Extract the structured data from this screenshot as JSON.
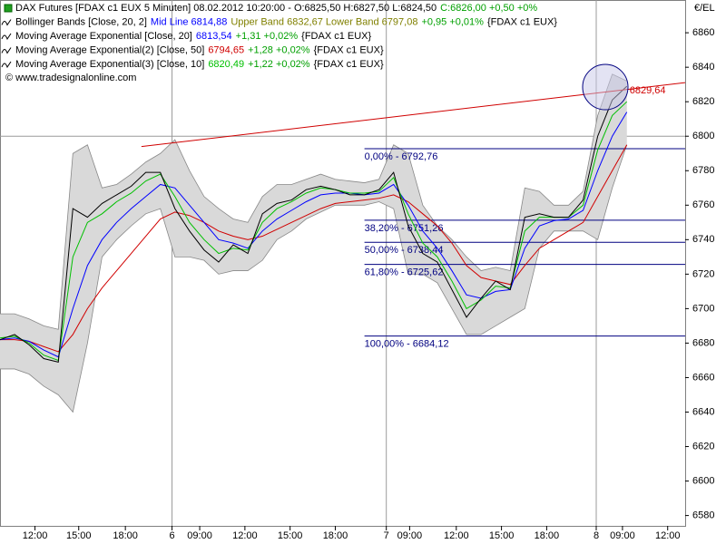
{
  "chart_data": {
    "type": "line",
    "legend_lines": [
      {
        "parts": [
          {
            "text": "DAX Futures [FDAX c1 EUX  5 Minuten] 08.02.2012 10:20:00 - O:6825,50 H:6827,50 L:6824,50",
            "color": "#000000"
          },
          {
            "text": "C:6826,00 +0,50 +0%",
            "color": "#00a000"
          }
        ]
      },
      {
        "parts": [
          {
            "text": "Bollinger Bands [Close, 20, 2]",
            "color": "#000000"
          },
          {
            "text": "Mid Line 6814,88",
            "color": "#0000ff"
          },
          {
            "text": "Upper Band 6832,67 Lower Band 6797,08",
            "color": "#808000"
          },
          {
            "text": "+0,95 +0,01%",
            "color": "#00a000"
          },
          {
            "text": "{FDAX c1 EUX}",
            "color": "#000000"
          }
        ]
      },
      {
        "parts": [
          {
            "text": "Moving Average Exponential [Close, 20]",
            "color": "#000000"
          },
          {
            "text": "6813,54",
            "color": "#0000ff"
          },
          {
            "text": "+1,31 +0,02%",
            "color": "#00a000"
          },
          {
            "text": "{FDAX c1 EUX}",
            "color": "#000000"
          }
        ]
      },
      {
        "parts": [
          {
            "text": "Moving Average Exponential(2) [Close, 50]",
            "color": "#000000"
          },
          {
            "text": "6794,65",
            "color": "#d00000"
          },
          {
            "text": "+1,28 +0,02%",
            "color": "#00a000"
          },
          {
            "text": "{FDAX c1 EUX}",
            "color": "#000000"
          }
        ]
      },
      {
        "parts": [
          {
            "text": "Moving Average Exponential(3) [Close, 10]",
            "color": "#000000"
          },
          {
            "text": "6820,49",
            "color": "#00c000"
          },
          {
            "text": "+1,22 +0,02%",
            "color": "#00a000"
          },
          {
            "text": "{FDAX c1 EUX}",
            "color": "#000000"
          }
        ]
      }
    ],
    "copyright": "© www.tradesignalonline.com",
    "y_axis_label": "€/EL",
    "x": [
      0,
      1,
      2,
      3,
      4,
      5,
      6,
      7,
      8,
      9,
      10,
      11,
      12,
      13,
      14,
      15,
      16,
      17,
      18,
      19,
      20,
      21,
      22,
      23,
      24,
      25,
      26,
      27,
      28,
      29,
      30,
      31,
      32,
      33,
      34,
      35,
      36,
      37,
      38,
      39,
      40,
      41,
      42,
      43
    ],
    "xlim": [
      0,
      47
    ],
    "xticks": [
      {
        "value": 2.4,
        "label": "12:00"
      },
      {
        "value": 5.4,
        "label": "15:00"
      },
      {
        "value": 8.6,
        "label": "18:00"
      },
      {
        "value": 11.8,
        "label": "6"
      },
      {
        "value": 13.7,
        "label": "09:00"
      },
      {
        "value": 16.8,
        "label": "12:00"
      },
      {
        "value": 19.9,
        "label": "15:00"
      },
      {
        "value": 23.0,
        "label": "18:00"
      },
      {
        "value": 26.5,
        "label": "7"
      },
      {
        "value": 28.1,
        "label": "09:00"
      },
      {
        "value": 31.3,
        "label": "12:00"
      },
      {
        "value": 34.4,
        "label": "15:00"
      },
      {
        "value": 37.5,
        "label": "18:00"
      },
      {
        "value": 40.9,
        "label": "8"
      },
      {
        "value": 42.7,
        "label": "09:00"
      },
      {
        "value": 45.8,
        "label": "12:00"
      }
    ],
    "ylim": [
      6574,
      6879
    ],
    "yticks": [
      6580,
      6600,
      6620,
      6640,
      6660,
      6680,
      6700,
      6720,
      6740,
      6760,
      6780,
      6800,
      6820,
      6840,
      6860
    ],
    "reference_lines": [
      6800
    ],
    "bands": {
      "color": "#d9d9d9",
      "upper": [
        6697,
        6697,
        6694,
        6690,
        6688,
        6790,
        6795,
        6770,
        6772,
        6778,
        6785,
        6790,
        6798,
        6780,
        6765,
        6758,
        6752,
        6750,
        6765,
        6772,
        6772,
        6775,
        6778,
        6775,
        6774,
        6773,
        6775,
        6795,
        6790,
        6760,
        6748,
        6740,
        6730,
        6722,
        6724,
        6722,
        6770,
        6768,
        6760,
        6760,
        6768,
        6812,
        6836,
        6832
      ],
      "lower": [
        6665,
        6665,
        6662,
        6655,
        6650,
        6640,
        6680,
        6730,
        6740,
        6748,
        6755,
        6758,
        6730,
        6730,
        6728,
        6720,
        6722,
        6722,
        6728,
        6740,
        6745,
        6752,
        6756,
        6760,
        6760,
        6760,
        6762,
        6758,
        6720,
        6720,
        6715,
        6700,
        6685,
        6685,
        6690,
        6695,
        6700,
        6735,
        6745,
        6745,
        6745,
        6740,
        6770,
        6795
      ]
    },
    "series": [
      {
        "color": "#d00000",
        "values": [
          6682,
          6682,
          6681,
          6678,
          6675,
          6685,
          6700,
          6712,
          6722,
          6732,
          6742,
          6752,
          6756,
          6754,
          6750,
          6745,
          6742,
          6740,
          6742,
          6746,
          6750,
          6754,
          6758,
          6761,
          6762,
          6763,
          6764,
          6766,
          6762,
          6755,
          6748,
          6738,
          6725,
          6718,
          6716,
          6714,
          6725,
          6735,
          6740,
          6745,
          6750,
          6765,
          6780,
          6795
        ]
      },
      {
        "color": "#0000ff",
        "values": [
          6682,
          6683,
          6681,
          6676,
          6672,
          6700,
          6725,
          6740,
          6750,
          6758,
          6765,
          6772,
          6770,
          6760,
          6750,
          6740,
          6738,
          6735,
          6745,
          6752,
          6757,
          6762,
          6766,
          6767,
          6767,
          6766,
          6767,
          6772,
          6760,
          6745,
          6735,
          6722,
          6708,
          6706,
          6710,
          6711,
          6735,
          6748,
          6751,
          6752,
          6757,
          6780,
          6800,
          6814
        ]
      },
      {
        "color": "#00c000",
        "values": [
          6683,
          6684,
          6680,
          6673,
          6670,
          6730,
          6750,
          6755,
          6762,
          6767,
          6774,
          6778,
          6765,
          6750,
          6740,
          6732,
          6735,
          6734,
          6750,
          6758,
          6762,
          6767,
          6770,
          6769,
          6767,
          6767,
          6768,
          6776,
          6755,
          6738,
          6730,
          6716,
          6700,
          6705,
          6713,
          6712,
          6745,
          6753,
          6753,
          6753,
          6760,
          6792,
          6812,
          6820
        ]
      },
      {
        "color": "#000000",
        "values": [
          6682,
          6685,
          6679,
          6671,
          6669,
          6758,
          6753,
          6761,
          6766,
          6771,
          6779,
          6779,
          6758,
          6745,
          6734,
          6727,
          6737,
          6732,
          6755,
          6761,
          6763,
          6769,
          6771,
          6769,
          6766,
          6766,
          6769,
          6779,
          6748,
          6732,
          6727,
          6711,
          6695,
          6706,
          6716,
          6711,
          6753,
          6755,
          6753,
          6753,
          6763,
          6800,
          6821,
          6829
        ]
      }
    ],
    "trendline": {
      "color": "#d00000",
      "x": [
        9.7,
        48.9
      ],
      "values": [
        6794,
        6833
      ]
    },
    "fib_x": [
      25,
      47
    ],
    "fib_color": "#000080",
    "fib_levels": [
      {
        "value": 6792.76,
        "label": "0,00% - 6792,76"
      },
      {
        "value": 6751.26,
        "label": "38,20% - 6751,26"
      },
      {
        "value": 6738.44,
        "label": "50,00% - 6738,44"
      },
      {
        "value": 6725.62,
        "label": "61,80% - 6725,62"
      },
      {
        "value": 6684.12,
        "label": "100,00% - 6684,12"
      }
    ],
    "last_price": {
      "value": 6829.64,
      "label": "6829,64",
      "color": "#d00000"
    }
  }
}
